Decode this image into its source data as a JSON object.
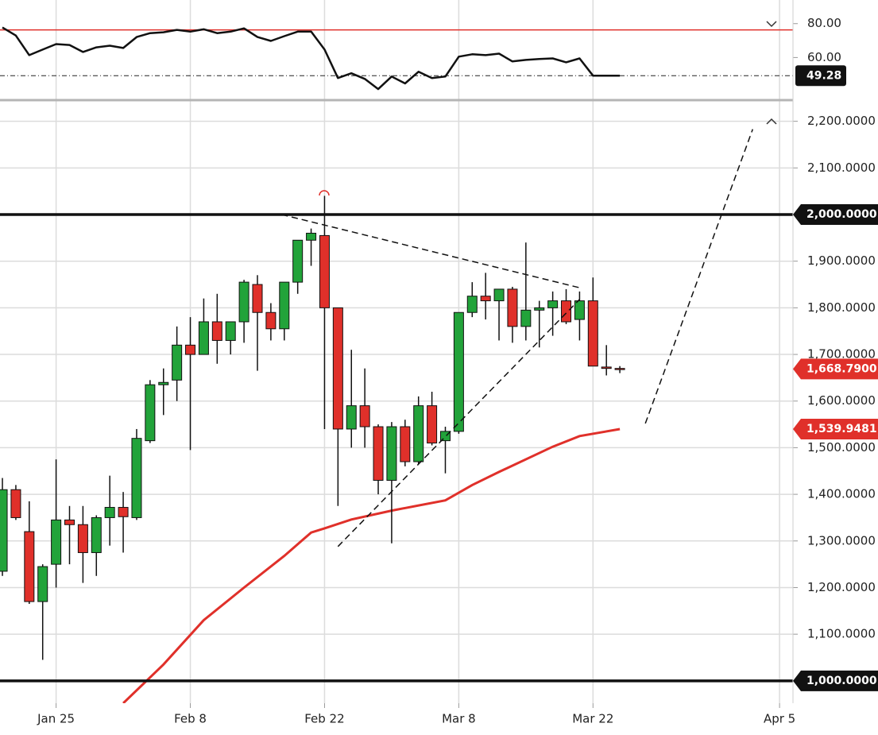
{
  "chart_data": [
    {
      "type": "line",
      "xlim": [
        -0.18,
        58.9
      ],
      "ylim": [
        35.8,
        91.6
      ],
      "yticks": [
        {
          "value": 80,
          "label": "80.00"
        },
        {
          "value": 60,
          "label": "60.00"
        }
      ],
      "series": [
        {
          "color": "#111111",
          "values": [
            77.7,
            73.0,
            61.4,
            64.7,
            67.9,
            67.4,
            63.3,
            66.0,
            67.0,
            65.6,
            72.1,
            74.4,
            74.9,
            76.3,
            75.3,
            76.7,
            74.4,
            75.3,
            77.2,
            72.1,
            69.8,
            72.6,
            75.3,
            75.3,
            64.7,
            47.9,
            50.7,
            47.4,
            41.4,
            48.8,
            44.7,
            51.6,
            47.9,
            48.8,
            60.5,
            61.9,
            61.4,
            62.3,
            57.7,
            58.6,
            59.1,
            59.5,
            57.2,
            59.5,
            49.3,
            49.3,
            49.28
          ]
        }
      ],
      "level": {
        "value": 76.3,
        "color": "#e0302a"
      },
      "current": {
        "value": 49.28,
        "label": "49.28"
      }
    },
    {
      "type": "candlestick",
      "xlim": [
        -0.18,
        58.9
      ],
      "xticks": [
        {
          "value": 4,
          "label": "Jan 25"
        },
        {
          "value": 14,
          "label": "Feb 8"
        },
        {
          "value": 24,
          "label": "Feb 22"
        },
        {
          "value": 34,
          "label": "Mar 8"
        },
        {
          "value": 44,
          "label": "Mar 22"
        },
        {
          "value": 57.9,
          "label": "Apr 5"
        }
      ],
      "ylim": [
        952,
        2242
      ],
      "yticks": [
        {
          "value": 1100,
          "label": "1,100.0000"
        },
        {
          "value": 1200,
          "label": "1,200.0000"
        },
        {
          "value": 1300,
          "label": "1,300.0000"
        },
        {
          "value": 1400,
          "label": "1,400.0000"
        },
        {
          "value": 1500,
          "label": "1,500.0000"
        },
        {
          "value": 1600,
          "label": "1,600.0000"
        },
        {
          "value": 1700,
          "label": "1,700.0000"
        },
        {
          "value": 1800,
          "label": "1,800.0000"
        },
        {
          "value": 1900,
          "label": "1,900.0000"
        },
        {
          "value": 2100,
          "label": "2,100.0000"
        },
        {
          "value": 2200,
          "label": "2,200.0000"
        }
      ],
      "grid": true,
      "up_color": "#22a33a",
      "down_color": "#e0302a",
      "open": [
        1235,
        1410,
        1320,
        1170,
        1250,
        1345,
        1335,
        1275,
        1350,
        1372,
        1350,
        1515,
        1635,
        1645,
        1720,
        1700,
        1770,
        1730,
        1770,
        1850,
        1790,
        1755,
        1855,
        1945,
        1955,
        1800,
        1540,
        1590,
        1545,
        1430,
        1545,
        1470,
        1590,
        1515,
        1535,
        1790,
        1825,
        1815,
        1840,
        1760,
        1795,
        1800,
        1815,
        1775,
        1815,
        1673,
        1670
      ],
      "high": [
        1435,
        1420,
        1385,
        1250,
        1475,
        1375,
        1375,
        1355,
        1440,
        1405,
        1540,
        1645,
        1670,
        1760,
        1780,
        1820,
        1830,
        1770,
        1860,
        1870,
        1810,
        1855,
        1945,
        1970,
        2040,
        1800,
        1710,
        1670,
        1550,
        1555,
        1560,
        1610,
        1620,
        1545,
        1790,
        1855,
        1875,
        1840,
        1845,
        1940,
        1815,
        1835,
        1840,
        1835,
        1865,
        1720,
        1675
      ],
      "low": [
        1225,
        1345,
        1165,
        1045,
        1200,
        1250,
        1210,
        1225,
        1290,
        1275,
        1345,
        1510,
        1570,
        1600,
        1495,
        1700,
        1680,
        1700,
        1725,
        1665,
        1730,
        1730,
        1830,
        1890,
        1540,
        1375,
        1500,
        1500,
        1400,
        1295,
        1460,
        1465,
        1505,
        1445,
        1530,
        1780,
        1775,
        1730,
        1725,
        1730,
        1715,
        1740,
        1765,
        1730,
        1675,
        1655,
        1660
      ],
      "close": [
        1410,
        1350,
        1170,
        1245,
        1345,
        1335,
        1275,
        1350,
        1372,
        1352,
        1520,
        1635,
        1640,
        1720,
        1700,
        1770,
        1730,
        1770,
        1855,
        1790,
        1755,
        1855,
        1945,
        1960,
        1800,
        1540,
        1590,
        1545,
        1430,
        1545,
        1470,
        1590,
        1510,
        1535,
        1790,
        1825,
        1815,
        1840,
        1760,
        1795,
        1800,
        1815,
        1770,
        1815,
        1675,
        1670,
        1668.79
      ],
      "moving_average": {
        "color": "#e0302a",
        "x": [
          9,
          12,
          15,
          18,
          21,
          23,
          24,
          26,
          29,
          33,
          35,
          37,
          41,
          43,
          46
        ],
        "values": [
          952,
          1035,
          1130,
          1200,
          1268,
          1318,
          1327,
          1346,
          1365,
          1387,
          1420,
          1448,
          1502,
          1525,
          1539.9481
        ]
      },
      "hlines": [
        {
          "value": 2000,
          "label": "2,000.0000"
        },
        {
          "value": 1000,
          "label": "1,000.0000"
        }
      ],
      "badges": [
        {
          "value": 1668.79,
          "label": "1,668.7900",
          "color": "#e0302a"
        },
        {
          "value": 1539.9481,
          "label": "1,539.9481",
          "color": "#e0302a"
        }
      ],
      "trendlines": [
        {
          "x": [
            20.8,
            43
          ],
          "y": [
            2000,
            1843
          ]
        },
        {
          "x": [
            25,
            43
          ],
          "y": [
            1288,
            1818
          ]
        },
        {
          "x": [
            47.9,
            55.9
          ],
          "y": [
            1552,
            2183
          ]
        }
      ]
    }
  ]
}
